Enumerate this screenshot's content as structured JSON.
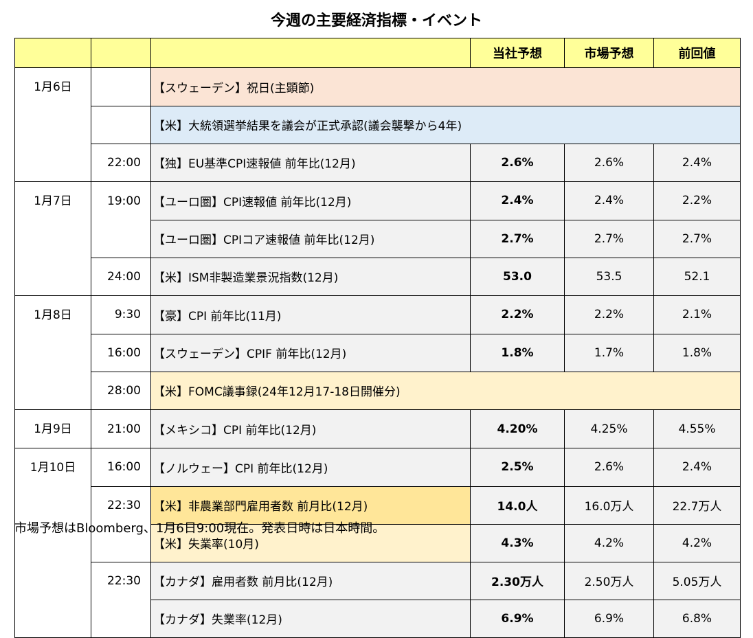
{
  "title": "今週の主要経済指標・イベント",
  "headers": {
    "forecast": "当社予想",
    "market": "市場予想",
    "previous": "前回値"
  },
  "rows": [
    {
      "date": "1月6日",
      "time": "",
      "event": "【スウェーデン】祝日(主顕節)",
      "forecast": "",
      "market": "",
      "previous": ""
    },
    {
      "date": "",
      "time": "",
      "event": "【米】大統領選挙結果を議会が正式承認(議会襲撃から4年)",
      "forecast": "",
      "market": "",
      "previous": ""
    },
    {
      "date": "",
      "time": "22:00",
      "event": "【独】EU基準CPI速報値 前年比(12月)",
      "forecast": "2.6%",
      "market": "2.6%",
      "previous": "2.4%"
    },
    {
      "date": "1月7日",
      "time": "19:00",
      "event": "【ユーロ圏】CPI速報値 前年比(12月)",
      "forecast": "2.4%",
      "market": "2.4%",
      "previous": "2.2%"
    },
    {
      "date": "",
      "time": "",
      "event": "【ユーロ圏】CPIコア速報値 前年比(12月)",
      "forecast": "2.7%",
      "market": "2.7%",
      "previous": "2.7%"
    },
    {
      "date": "",
      "time": "24:00",
      "event": "【米】ISM非製造業景況指数(12月)",
      "forecast": "53.0",
      "market": "53.5",
      "previous": "52.1"
    },
    {
      "date": "1月8日",
      "time": "9:30",
      "event": "【豪】CPI 前年比(11月)",
      "forecast": "2.2%",
      "market": "2.2%",
      "previous": "2.1%"
    },
    {
      "date": "",
      "time": "16:00",
      "event": "【スウェーデン】CPIF 前年比(12月)",
      "forecast": "1.8%",
      "market": "1.7%",
      "previous": "1.8%"
    },
    {
      "date": "",
      "time": "28:00",
      "event": "【米】FOMC議事録(24年12月17-18日開催分)",
      "forecast": "",
      "market": "",
      "previous": ""
    },
    {
      "date": "1月9日",
      "time": "21:00",
      "event": "【メキシコ】CPI 前年比(12月)",
      "forecast": "4.20%",
      "market": "4.25%",
      "previous": "4.55%"
    },
    {
      "date": "1月10日",
      "time": "16:00",
      "event": "【ノルウェー】CPI 前年比(12月)",
      "forecast": "2.5%",
      "market": "2.6%",
      "previous": "2.4%"
    },
    {
      "date": "",
      "time": "22:30",
      "event": "【米】非農業部門雇用者数 前月比(12月)",
      "forecast": "14.0人",
      "market": "16.0万人",
      "previous": "22.7万人"
    },
    {
      "date": "",
      "time": "",
      "event": "【米】失業率(10月)",
      "forecast": "4.3%",
      "market": "4.2%",
      "previous": "4.2%"
    },
    {
      "date": "",
      "time": "22:30",
      "event": "【カナダ】雇用者数 前月比(12月)",
      "forecast": "2.30万人",
      "market": "2.50万人",
      "previous": "5.05万人"
    },
    {
      "date": "",
      "time": "",
      "event": "【カナダ】失業率(12月)",
      "forecast": "6.9%",
      "market": "6.9%",
      "previous": "6.8%"
    }
  ],
  "note": "市場予想はBloomberg、1月6日9:00現在。発表日時は日本時間。",
  "colors": {
    "header": "#ffff99",
    "pink": "#fbe4d5",
    "blue": "#ddebf7",
    "cream": "#fff2cc",
    "orange": "#ffe699",
    "gray": "#f2f2f2"
  }
}
